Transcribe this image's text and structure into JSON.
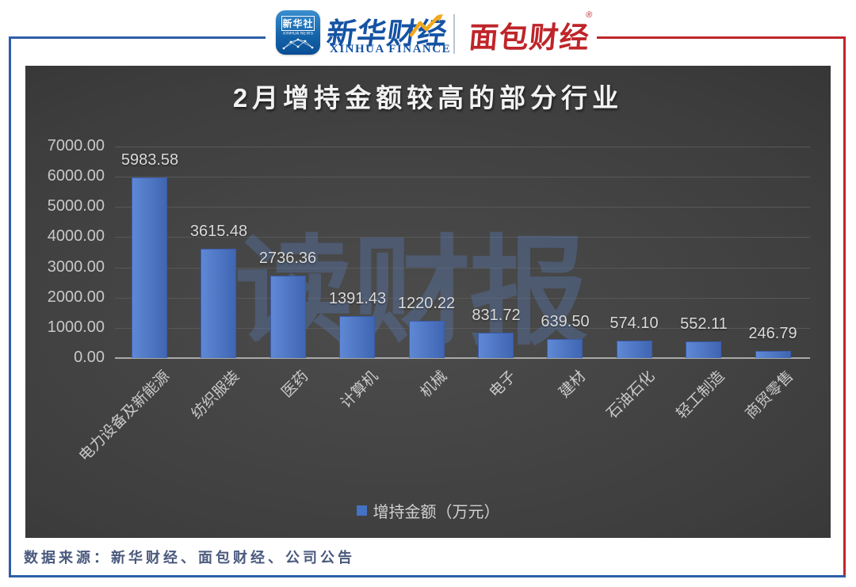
{
  "header": {
    "xinhua_app": {
      "cn": "新华社",
      "en": "XINHUA NEWS"
    },
    "xinhua_finance": {
      "cn": "新华财经",
      "en": "XINHUA FINANCE"
    },
    "mianbao": {
      "cn": "面包财经",
      "reg": "®"
    },
    "icons": [
      "xinhua-news-app-icon",
      "network-globe-icon",
      "stock-zigzag-icon",
      "registered-trademark-icon"
    ]
  },
  "chart_data": {
    "type": "bar",
    "title": "2月增持金额较高的部分行业",
    "categories": [
      "电力设备及新能源",
      "纺织服装",
      "医药",
      "计算机",
      "机械",
      "电子",
      "建材",
      "石油石化",
      "轻工制造",
      "商贸零售"
    ],
    "values": [
      5983.58,
      3615.48,
      2736.36,
      1391.43,
      1220.22,
      831.72,
      639.5,
      574.1,
      552.11,
      246.79
    ],
    "value_labels": [
      "5983.58",
      "3615.48",
      "2736.36",
      "1391.43",
      "1220.22",
      "831.72",
      "639.50",
      "574.10",
      "552.11",
      "246.79"
    ],
    "y_ticks": [
      "7000.00",
      "6000.00",
      "5000.00",
      "4000.00",
      "3000.00",
      "2000.00",
      "1000.00",
      "0.00"
    ],
    "ylim": [
      0,
      7000
    ],
    "grid": true,
    "legend": "增持金额（万元）",
    "legend_position": "bottom",
    "xlabel": "",
    "ylabel": "",
    "watermark": "读财报"
  },
  "footer": {
    "source": "数据来源：新华财经、面包财经、公司公告"
  },
  "colors": {
    "accent_blue": "#2e5ea6",
    "accent_red": "#c0262c",
    "brand_blue": "#1553a4",
    "brand_red": "#bf2429",
    "bar_light": "#5e88d5",
    "bar_dark": "#4066b2",
    "bar_border": "#3a5ca8",
    "legend_marker": "#4472c4",
    "watermark_color": "rgba(90,130,200,0.32)",
    "bolt_yellow": "#f2a71d"
  }
}
